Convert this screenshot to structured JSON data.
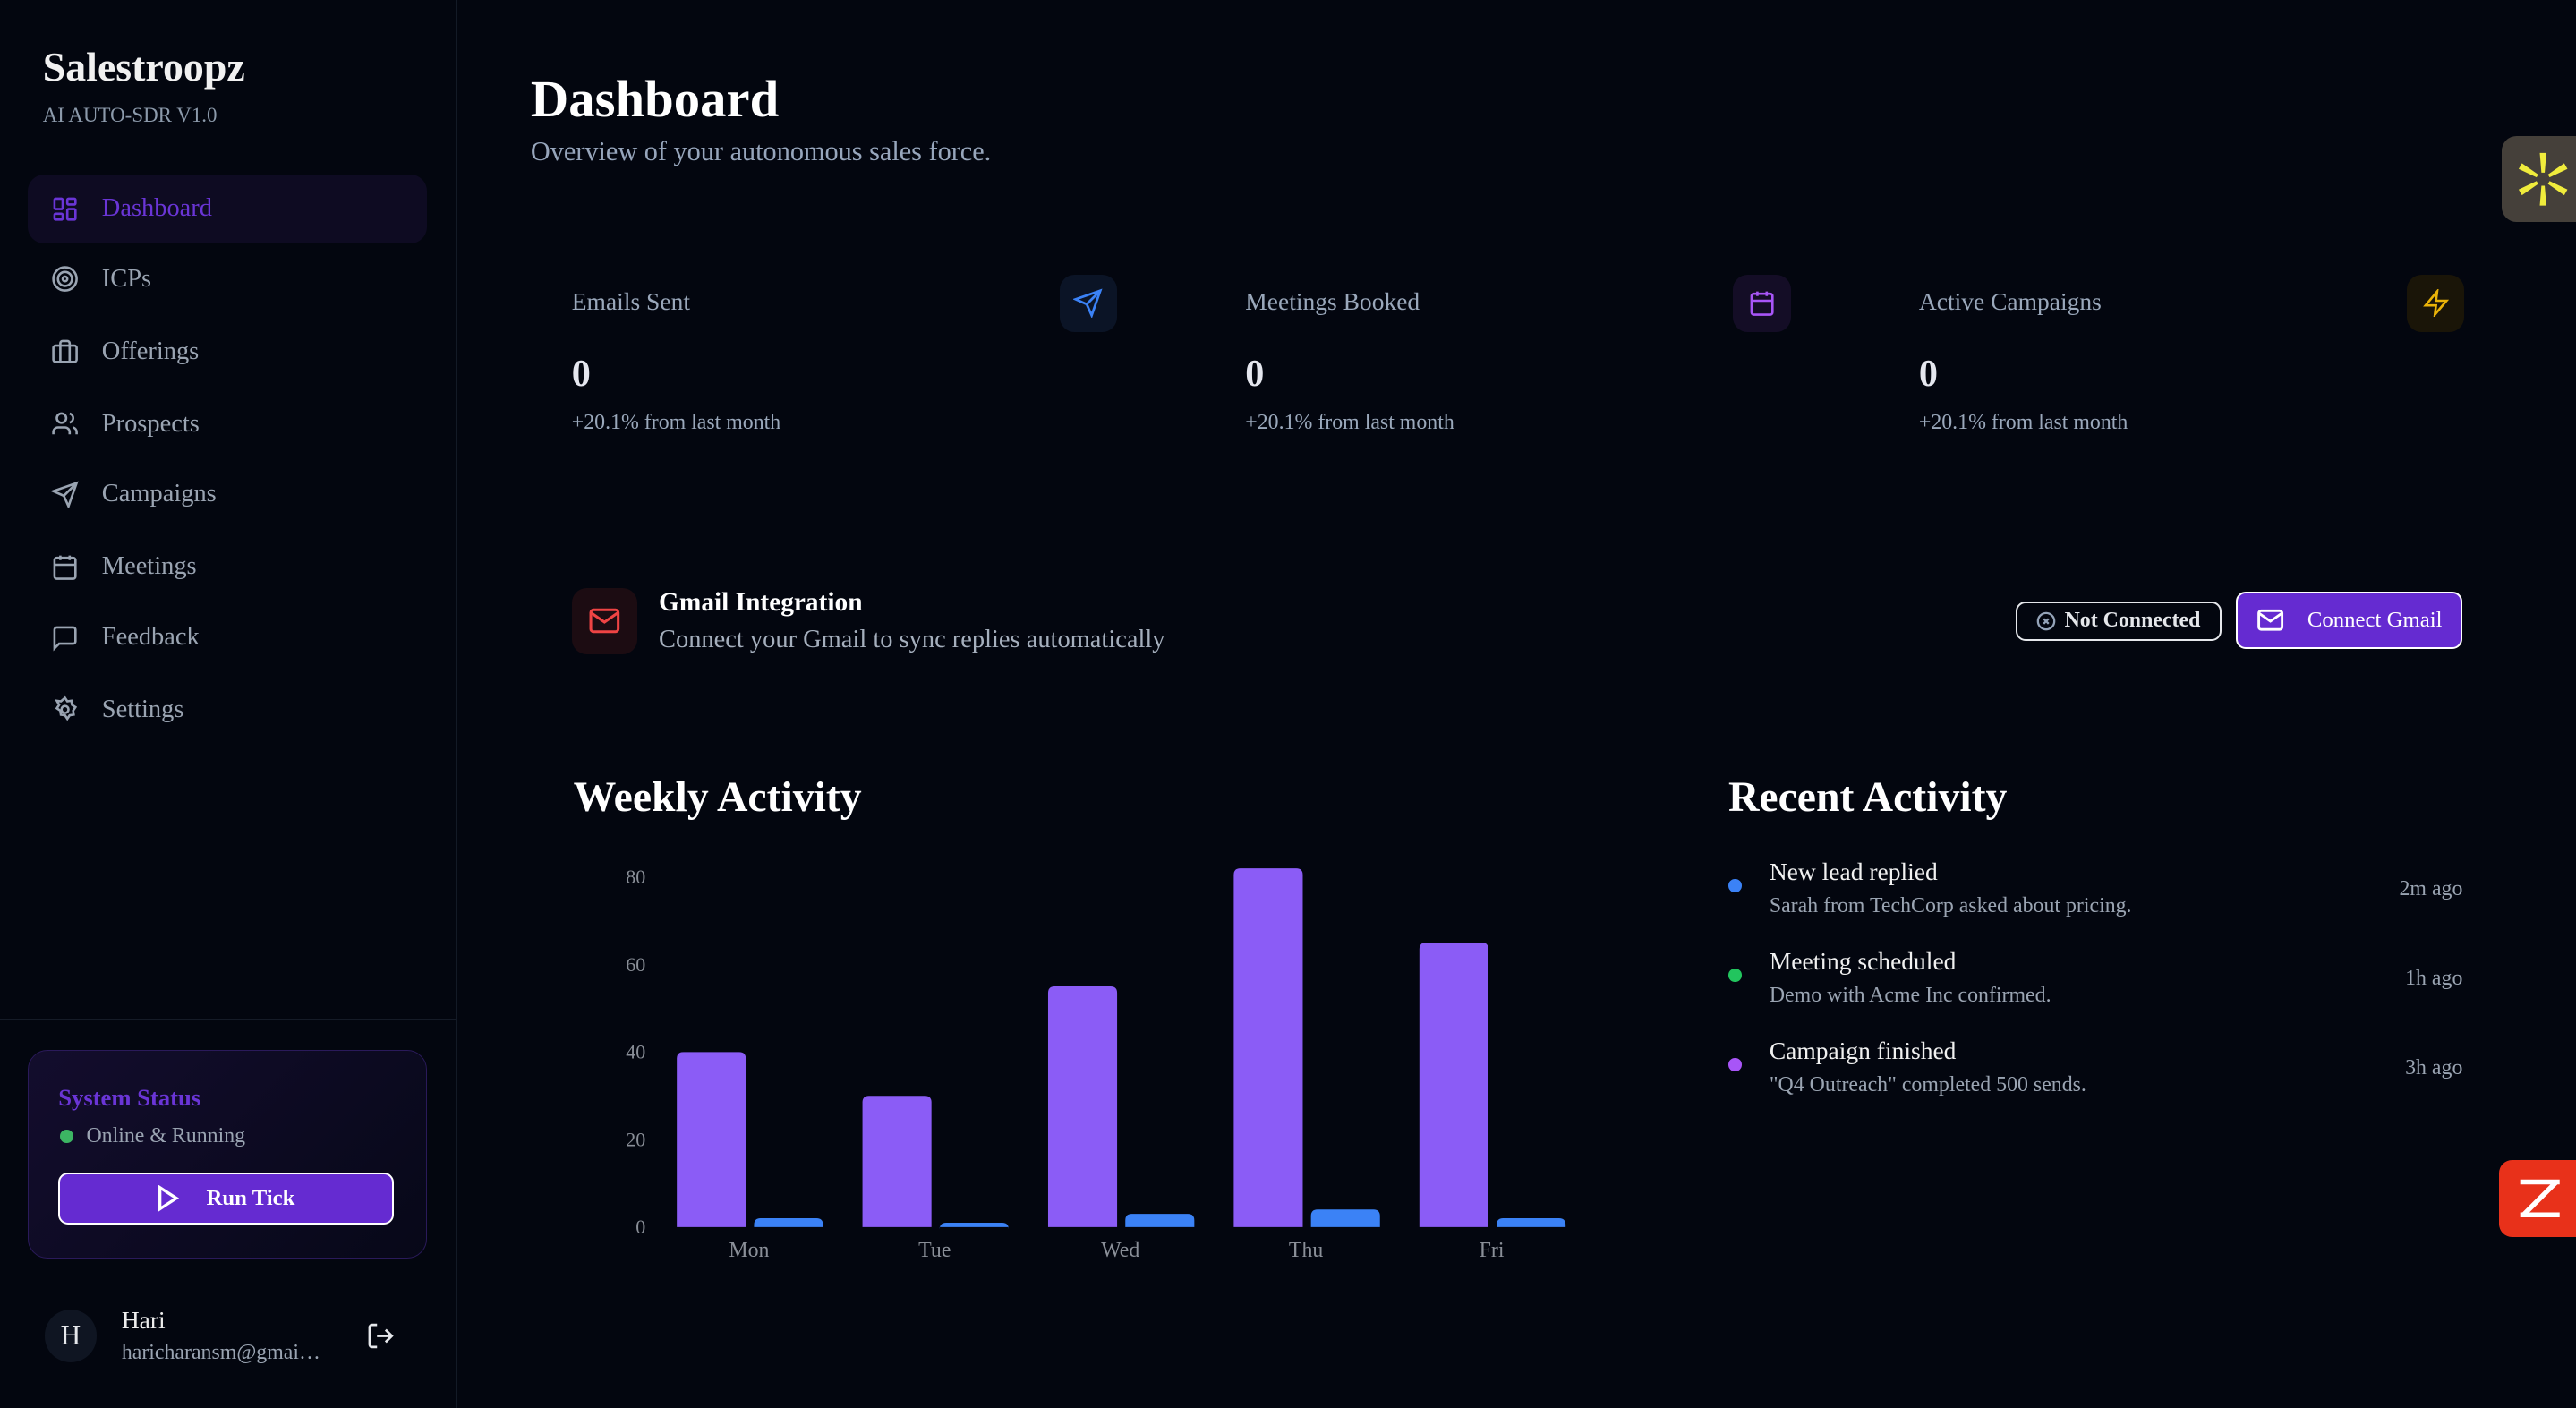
{
  "sidebar": {
    "brand": "Salestroopz",
    "subtitle": "AI AUTO-SDR V1.0",
    "items": [
      {
        "label": "Dashboard",
        "icon": "layout-dashboard-icon",
        "active": true
      },
      {
        "label": "ICPs",
        "icon": "target-icon"
      },
      {
        "label": "Offerings",
        "icon": "briefcase-icon"
      },
      {
        "label": "Prospects",
        "icon": "users-icon"
      },
      {
        "label": "Campaigns",
        "icon": "send-icon"
      },
      {
        "label": "Meetings",
        "icon": "calendar-icon"
      },
      {
        "label": "Feedback",
        "icon": "message-square-icon"
      },
      {
        "label": "Settings",
        "icon": "settings-icon"
      }
    ],
    "system_status": {
      "title": "System Status",
      "status": "Online & Running",
      "run_label": "Run Tick"
    },
    "user": {
      "initial": "H",
      "name": "Hari",
      "email": "haricharansm@gmai…"
    }
  },
  "header": {
    "title": "Dashboard",
    "subtitle": "Overview of your autonomous sales force."
  },
  "stats": [
    {
      "label": "Emails Sent",
      "value": "0",
      "change": "+20.1% from last month",
      "icon": "send-icon",
      "color": "#3b82f6"
    },
    {
      "label": "Meetings Booked",
      "value": "0",
      "change": "+20.1% from last month",
      "icon": "calendar-icon",
      "color": "#a855f7"
    },
    {
      "label": "Active Campaigns",
      "value": "0",
      "change": "+20.1% from last month",
      "icon": "zap-icon",
      "color": "#eab308"
    }
  ],
  "gmail": {
    "title": "Gmail Integration",
    "subtitle": "Connect your Gmail to sync replies automatically",
    "status": "Not Connected",
    "connect_label": "Connect Gmail"
  },
  "weekly": {
    "title": "Weekly Activity"
  },
  "chart_data": {
    "type": "bar",
    "categories": [
      "Mon",
      "Tue",
      "Wed",
      "Thu",
      "Fri"
    ],
    "series": [
      {
        "values": [
          40,
          30,
          55,
          82,
          65
        ],
        "color": "#8b5cf6"
      },
      {
        "values": [
          2,
          1,
          3,
          4,
          2
        ],
        "color": "#3b82f6"
      }
    ],
    "yticks": [
      0,
      20,
      40,
      60,
      80
    ],
    "ylim": [
      0,
      82
    ],
    "grid": false
  },
  "recent": {
    "title": "Recent Activity",
    "items": [
      {
        "title": "New lead replied",
        "desc": "Sarah from TechCorp asked about pricing.",
        "time": "2m ago",
        "color": "#3b82f6"
      },
      {
        "title": "Meeting scheduled",
        "desc": "Demo with Acme Inc confirmed.",
        "time": "1h ago",
        "color": "#22c55e"
      },
      {
        "title": "Campaign finished",
        "desc": "\"Q4 Outreach\" completed 500 sends.",
        "time": "3h ago",
        "color": "#a855f7"
      }
    ]
  },
  "colors": {
    "accent": "#652bd1",
    "background": "#03060f"
  }
}
